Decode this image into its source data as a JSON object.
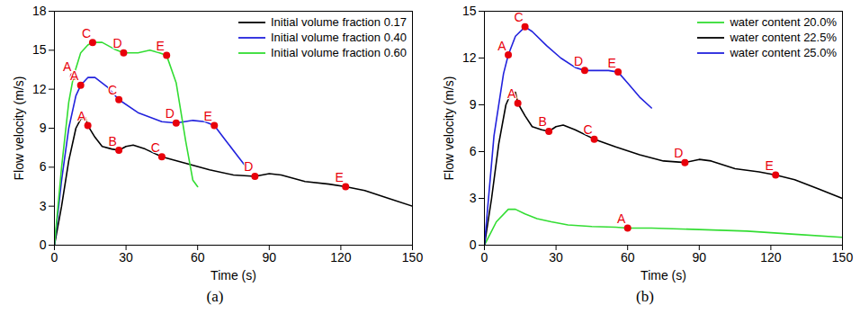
{
  "chart_data": [
    {
      "type": "line",
      "caption": "(a)",
      "x_label": "Time (s)",
      "y_label": "Flow velocity (m/s)",
      "xlim": [
        0,
        150
      ],
      "xticks": [
        0,
        30,
        60,
        90,
        120,
        150
      ],
      "ylim": [
        0,
        18
      ],
      "yticks": [
        0,
        3,
        6,
        9,
        12,
        15,
        18
      ],
      "legend": "upper right",
      "series": [
        {
          "name": "Initial volume fraction 0.17",
          "color": "#000000",
          "x": [
            0,
            3,
            6,
            9,
            11,
            13,
            14,
            17,
            20,
            24,
            27,
            30,
            33,
            38,
            45,
            55,
            65,
            75,
            84,
            90,
            95,
            105,
            115,
            122,
            130,
            140,
            150
          ],
          "values": [
            0,
            3,
            6.5,
            9,
            9.7,
            9.8,
            9.2,
            8.3,
            7.6,
            7.4,
            7.3,
            7.6,
            7.7,
            7.4,
            6.8,
            6.3,
            5.8,
            5.4,
            5.3,
            5.5,
            5.4,
            4.9,
            4.7,
            4.5,
            4.2,
            3.6,
            3.0
          ]
        },
        {
          "name": "Initial volume fraction 0.40",
          "color": "#2222dd",
          "x": [
            0,
            3,
            6,
            9,
            11,
            14,
            17,
            22,
            27,
            35,
            45,
            51,
            58,
            63,
            67,
            72,
            77,
            80
          ],
          "values": [
            0,
            5,
            9,
            11.5,
            12.3,
            12.9,
            12.9,
            12.2,
            11.2,
            10.2,
            9.5,
            9.4,
            9.6,
            9.5,
            9.2,
            8,
            6.8,
            6.1
          ]
        },
        {
          "name": "Initial volume fraction 0.60",
          "color": "#33dd33",
          "x": [
            0,
            3,
            6,
            8,
            11,
            14,
            16,
            20,
            25,
            29,
            35,
            40,
            44,
            47,
            51,
            55,
            58,
            60
          ],
          "values": [
            0,
            6,
            11,
            13,
            14.8,
            15.4,
            15.6,
            15.6,
            15.1,
            14.8,
            14.8,
            15,
            14.8,
            14.6,
            12.5,
            8,
            5,
            4.5
          ]
        }
      ],
      "annotations": [
        {
          "text": "A",
          "x": 14,
          "y": 9.2,
          "color": "#e8000b"
        },
        {
          "text": "B",
          "x": 27,
          "y": 7.3,
          "color": "#e8000b"
        },
        {
          "text": "C",
          "x": 45,
          "y": 6.8,
          "color": "#e8000b"
        },
        {
          "text": "D",
          "x": 84,
          "y": 5.3,
          "color": "#e8000b"
        },
        {
          "text": "E",
          "x": 122,
          "y": 4.5,
          "color": "#e8000b"
        },
        {
          "text": "A",
          "x": 11,
          "y": 12.3,
          "color": "#e8000b"
        },
        {
          "text": "C",
          "x": 27,
          "y": 11.2,
          "color": "#e8000b"
        },
        {
          "text": "D",
          "x": 51,
          "y": 9.4,
          "color": "#e8000b"
        },
        {
          "text": "E",
          "x": 67,
          "y": 9.2,
          "color": "#e8000b"
        },
        {
          "text": "A",
          "x": 8,
          "y": 13,
          "color": "#e8000b"
        },
        {
          "text": "C",
          "x": 16,
          "y": 15.6,
          "color": "#e8000b"
        },
        {
          "text": "D",
          "x": 29,
          "y": 14.8,
          "color": "#e8000b"
        },
        {
          "text": "E",
          "x": 47,
          "y": 14.6,
          "color": "#e8000b"
        }
      ]
    },
    {
      "type": "line",
      "caption": "(b)",
      "x_label": "Time (s)",
      "y_label": "Flow velocity (m/s)",
      "xlim": [
        0,
        150
      ],
      "xticks": [
        0,
        30,
        60,
        90,
        120,
        150
      ],
      "ylim": [
        0,
        15
      ],
      "yticks": [
        0,
        3,
        6,
        9,
        12,
        15
      ],
      "legend": "upper right",
      "series": [
        {
          "name": "water content 20.0%",
          "color": "#33dd33",
          "x": [
            0,
            5,
            10,
            13,
            17,
            22,
            28,
            35,
            45,
            55,
            60,
            70,
            90,
            110,
            130,
            150
          ],
          "values": [
            0,
            1.5,
            2.3,
            2.3,
            2.0,
            1.7,
            1.5,
            1.3,
            1.2,
            1.15,
            1.1,
            1.1,
            1.0,
            0.9,
            0.7,
            0.5
          ]
        },
        {
          "name": "water content 22.5%",
          "color": "#000000",
          "x": [
            0,
            3,
            6,
            9,
            11,
            13,
            14,
            17,
            20,
            24,
            27,
            30,
            33,
            38,
            46,
            55,
            65,
            75,
            84,
            90,
            95,
            105,
            115,
            122,
            130,
            140,
            150
          ],
          "values": [
            0,
            3,
            6.5,
            9,
            9.7,
            9.8,
            9.1,
            8.3,
            7.6,
            7.4,
            7.3,
            7.6,
            7.7,
            7.4,
            6.8,
            6.3,
            5.8,
            5.4,
            5.3,
            5.5,
            5.4,
            4.9,
            4.7,
            4.5,
            4.2,
            3.6,
            3.0
          ]
        },
        {
          "name": "water content 25.0%",
          "color": "#2222dd",
          "x": [
            0,
            4,
            8,
            10,
            13,
            17,
            20,
            26,
            32,
            38,
            42,
            48,
            52,
            56,
            60,
            65,
            70
          ],
          "values": [
            0,
            7,
            11,
            12.2,
            13.4,
            14,
            13.7,
            12.8,
            12,
            11.4,
            11.2,
            11.2,
            11.2,
            11.1,
            10.4,
            9.5,
            8.8
          ]
        }
      ],
      "annotations": [
        {
          "text": "A",
          "x": 60,
          "y": 1.1,
          "color": "#e8000b"
        },
        {
          "text": "A",
          "x": 14,
          "y": 9.1,
          "color": "#e8000b"
        },
        {
          "text": "B",
          "x": 27,
          "y": 7.3,
          "color": "#e8000b"
        },
        {
          "text": "C",
          "x": 46,
          "y": 6.8,
          "color": "#e8000b"
        },
        {
          "text": "D",
          "x": 84,
          "y": 5.3,
          "color": "#e8000b"
        },
        {
          "text": "E",
          "x": 122,
          "y": 4.5,
          "color": "#e8000b"
        },
        {
          "text": "A",
          "x": 10,
          "y": 12.2,
          "color": "#e8000b"
        },
        {
          "text": "C",
          "x": 17,
          "y": 14,
          "color": "#e8000b"
        },
        {
          "text": "D",
          "x": 42,
          "y": 11.2,
          "color": "#e8000b"
        },
        {
          "text": "E",
          "x": 56,
          "y": 11.1,
          "color": "#e8000b"
        }
      ]
    }
  ]
}
